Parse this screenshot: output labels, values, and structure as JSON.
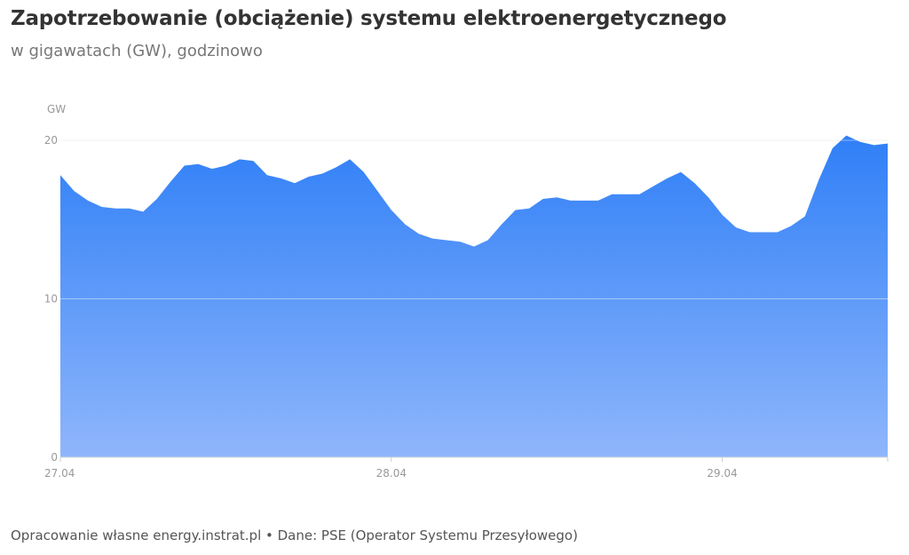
{
  "header": {
    "title": "Zapotrzebowanie (obciążenie) systemu elektroenergetycznego",
    "subtitle": "w gigawatach (GW), godzinowo"
  },
  "footer": {
    "source": "Opracowanie własne energy.instrat.pl • Dane: PSE (Operator Systemu Przesyłowego)"
  },
  "colors": {
    "fill_top": "#2f7ff7",
    "fill_bottom": "#8fb6fb",
    "gridline": "#e6e6e6",
    "axis_text": "#999999"
  },
  "chart_data": {
    "type": "area",
    "title": "Zapotrzebowanie (obciążenie) systemu elektroenergetycznego",
    "subtitle": "w gigawatach (GW), godzinowo",
    "ylabel": "GW",
    "xlabel": "",
    "ylim": [
      0,
      20
    ],
    "yticks": [
      0,
      10,
      20
    ],
    "grid": true,
    "x_ticks": [
      {
        "label": "27.04",
        "hour": 0
      },
      {
        "label": "28.04",
        "hour": 24
      },
      {
        "label": "29.04",
        "hour": 48
      }
    ],
    "x_range_hours": [
      0,
      60
    ],
    "series": [
      {
        "values": [
          17.8,
          16.8,
          16.2,
          15.8,
          15.7,
          15.7,
          15.5,
          16.3,
          17.4,
          18.4,
          18.5,
          18.2,
          18.4,
          18.8,
          18.7,
          17.8,
          17.6,
          17.3,
          17.7,
          17.9,
          18.3,
          18.8,
          18.0,
          16.8,
          15.6,
          14.7,
          14.1,
          13.8,
          13.7,
          13.6,
          13.3,
          13.7,
          14.7,
          15.6,
          15.7,
          16.3,
          16.4,
          16.2,
          16.2,
          16.2,
          16.6,
          16.6,
          16.6,
          17.1,
          17.6,
          18.0,
          17.3,
          16.4,
          15.3,
          14.5,
          14.2,
          14.2,
          14.2,
          14.6,
          15.2,
          17.5,
          19.5,
          20.3,
          19.9,
          19.7,
          19.8
        ]
      }
    ]
  }
}
